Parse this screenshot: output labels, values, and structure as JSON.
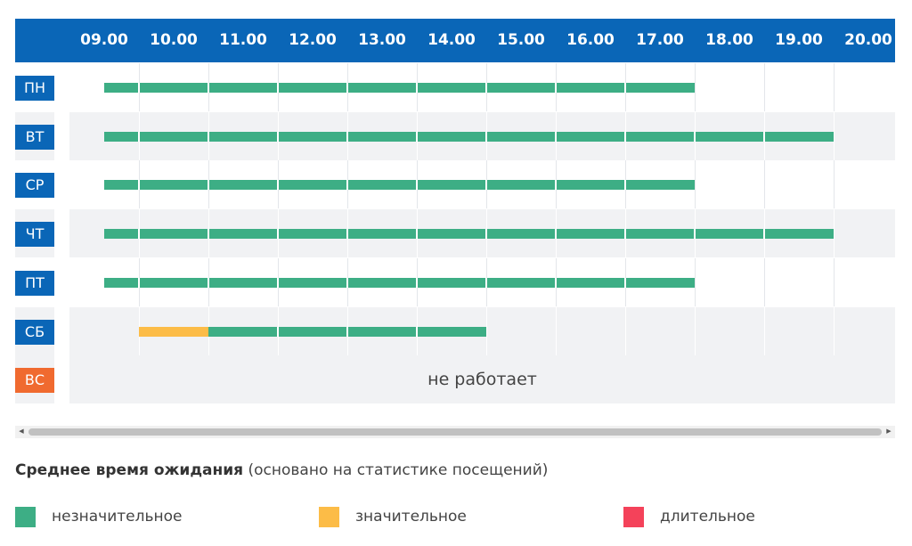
{
  "schedule": {
    "hours": [
      "09.00",
      "10.00",
      "11.00",
      "12.00",
      "13.00",
      "14.00",
      "15.00",
      "16.00",
      "17.00",
      "18.00",
      "19.00",
      "20.00"
    ],
    "days": [
      {
        "label": "ПН",
        "off": false,
        "segments": [
          {
            "from": 9,
            "to": 17.5,
            "level": "low"
          }
        ]
      },
      {
        "label": "ВТ",
        "off": false,
        "segments": [
          {
            "from": 9,
            "to": 19.5,
            "level": "low"
          }
        ]
      },
      {
        "label": "СР",
        "off": false,
        "segments": [
          {
            "from": 9,
            "to": 17.5,
            "level": "low"
          }
        ]
      },
      {
        "label": "ЧТ",
        "off": false,
        "segments": [
          {
            "from": 9,
            "to": 19.5,
            "level": "low"
          }
        ]
      },
      {
        "label": "ПТ",
        "off": false,
        "segments": [
          {
            "from": 9,
            "to": 17.5,
            "level": "low"
          }
        ]
      },
      {
        "label": "СБ",
        "off": false,
        "segments": [
          {
            "from": 9.5,
            "to": 10.5,
            "level": "mid"
          },
          {
            "from": 10.5,
            "to": 14.5,
            "level": "low"
          }
        ]
      },
      {
        "label": "ВС",
        "off": true,
        "closed_text": "не работает",
        "segments": []
      }
    ]
  },
  "legend": {
    "title_bold": "Среднее время ожидания",
    "title_rest": " (основано на статистике посещений)",
    "items": [
      {
        "label": "незначительное",
        "level": "low",
        "color": "#3dae85"
      },
      {
        "label": "значительное",
        "level": "mid",
        "color": "#fcbc47"
      },
      {
        "label": "длительное",
        "level": "high",
        "color": "#f4425a"
      }
    ]
  },
  "colors": {
    "header": "#0a66b7",
    "day_closed": "#f06a2f"
  }
}
